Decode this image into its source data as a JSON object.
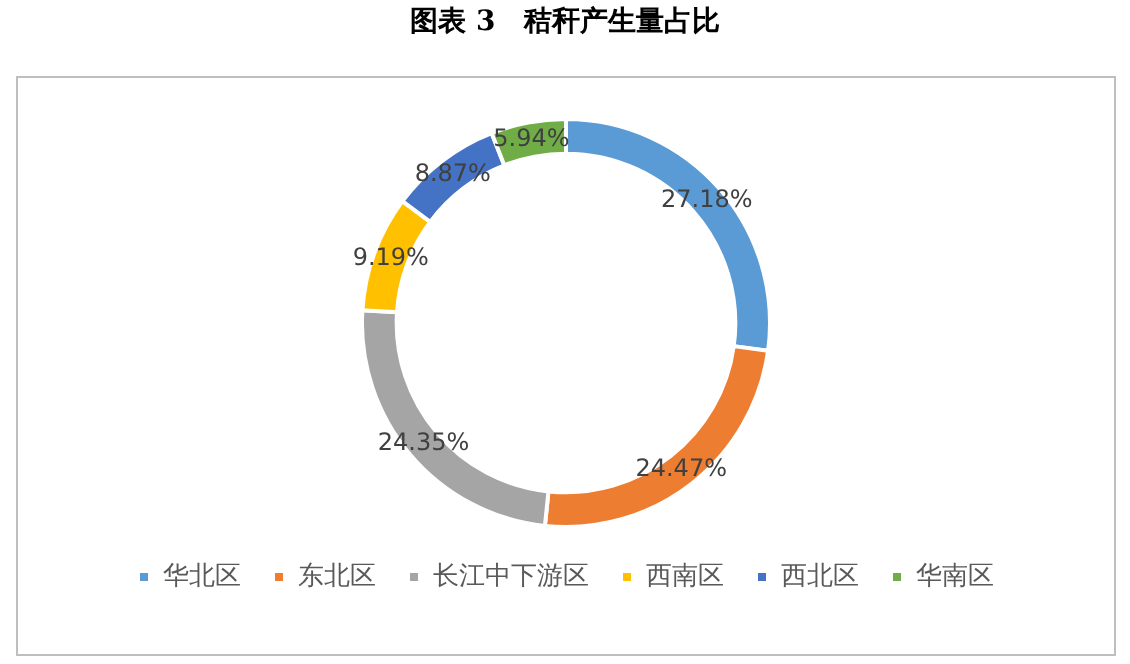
{
  "chart_data": {
    "type": "donut",
    "title": "图表 3　秸秆产生量占比",
    "categories": [
      "华北区",
      "东北区",
      "长江中下游区",
      "西南区",
      "西北区",
      "华南区"
    ],
    "values": [
      27.18,
      24.47,
      24.35,
      9.19,
      8.87,
      5.94
    ],
    "colors": [
      "#5b9bd5",
      "#ed7d31",
      "#a5a5a5",
      "#ffc000",
      "#4472c4",
      "#70ad47"
    ],
    "value_labels": [
      "27.18%",
      "24.47%",
      "24.35%",
      "9.19%",
      "8.87%",
      "5.94%"
    ],
    "legend": "bottom"
  }
}
